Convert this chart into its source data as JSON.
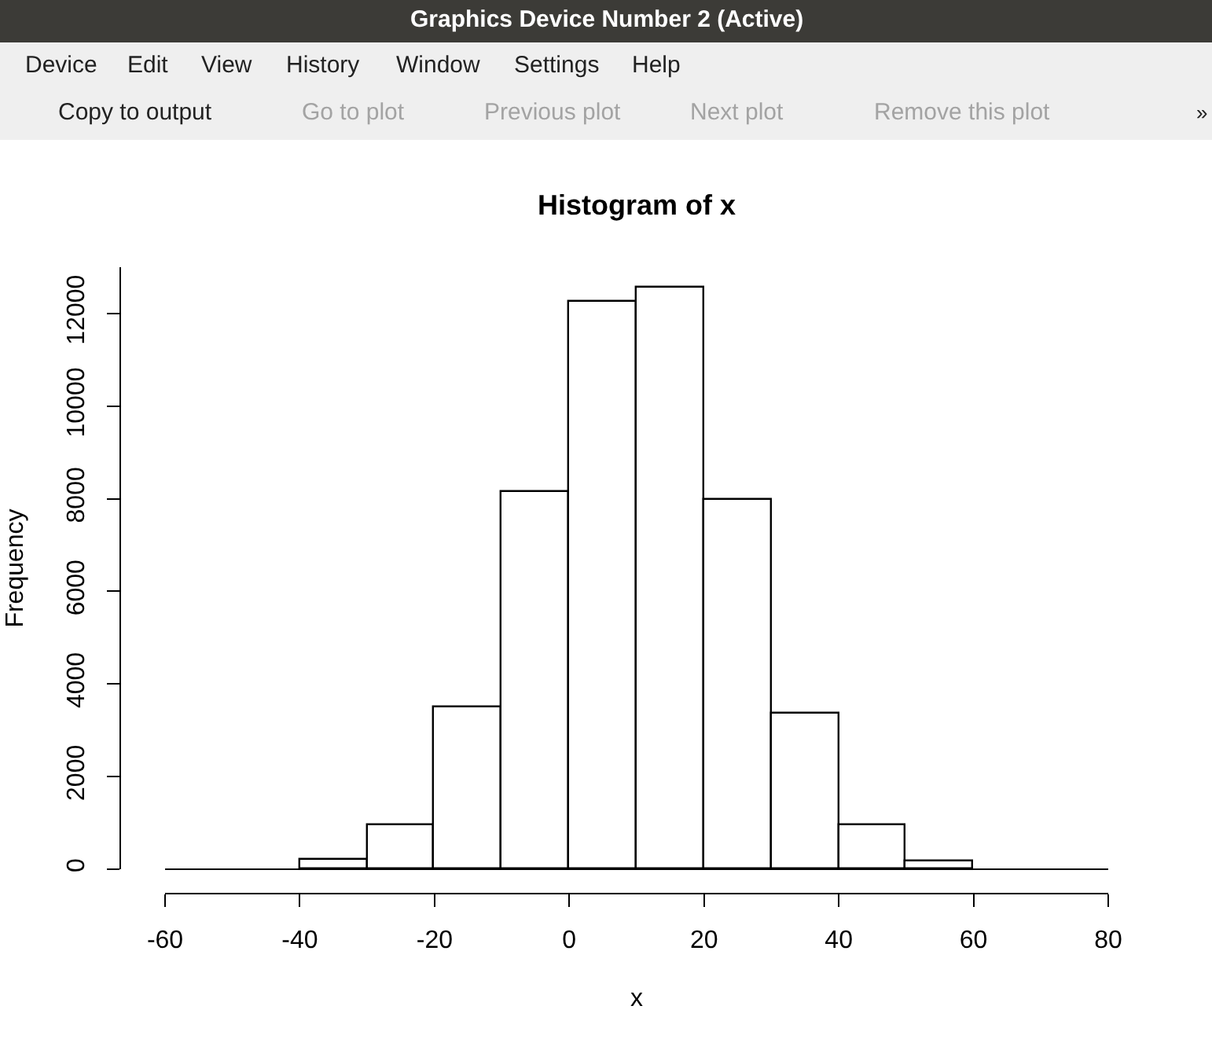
{
  "chart_data": {
    "type": "histogram",
    "title": "Histogram of x",
    "xlabel": "x",
    "ylabel": "Frequency",
    "bins": [
      -60,
      -50,
      -40,
      -30,
      -20,
      -10,
      0,
      10,
      20,
      30,
      40,
      50,
      60,
      70,
      80
    ],
    "values": [
      0,
      0,
      200,
      950,
      3500,
      8150,
      12250,
      12550,
      7980,
      3350,
      950,
      170,
      0,
      0
    ],
    "color": "#ffffff",
    "xlim": [
      -60,
      80
    ],
    "xticks": [
      -60,
      -40,
      -20,
      0,
      20,
      40,
      60,
      80
    ],
    "ylim": [
      0,
      13000
    ],
    "yticks": [
      0,
      2000,
      4000,
      6000,
      8000,
      10000,
      12000
    ],
    "annotations": [
      "Graphics Device Number 2 (Active)",
      "Device",
      "Edit",
      "View",
      "History",
      "Window",
      "Settings",
      "Help",
      "Copy to output",
      "Go to plot",
      "Previous plot",
      "Next plot",
      "Remove this plot",
      "»"
    ]
  }
}
